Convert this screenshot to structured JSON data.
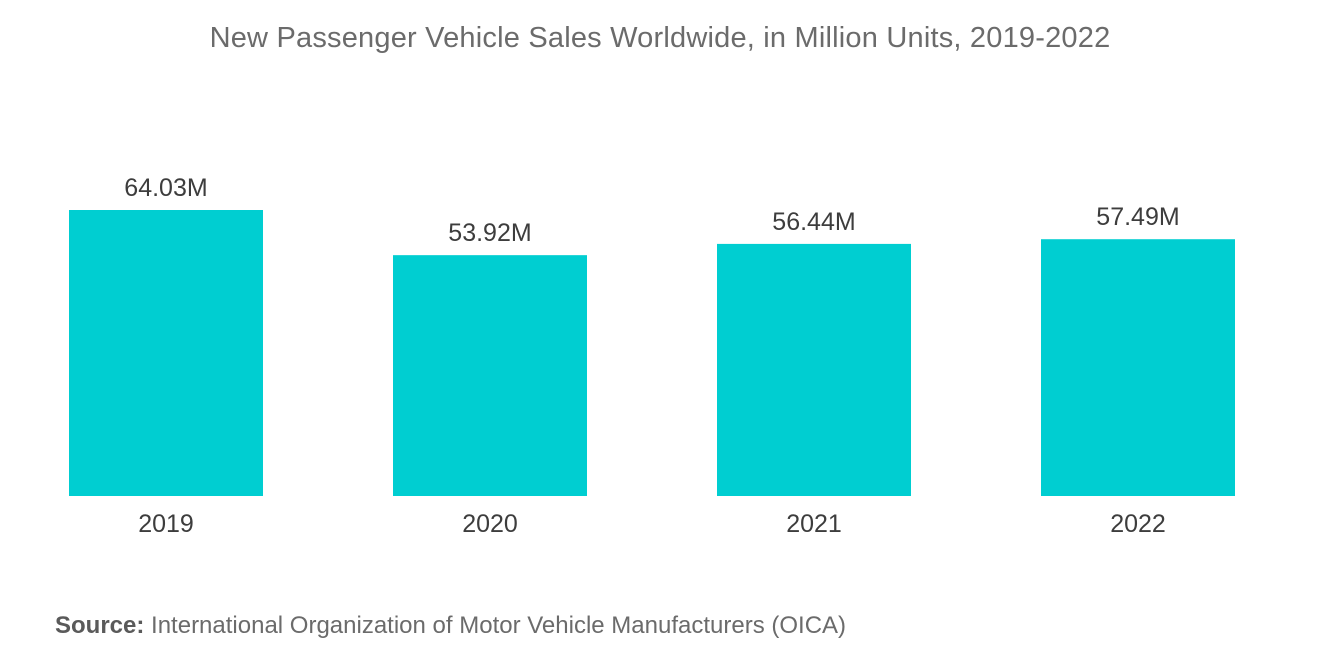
{
  "chart_data": {
    "type": "bar",
    "title": "New Passenger Vehicle Sales Worldwide, in Million Units, 2019-2022",
    "categories": [
      "2019",
      "2020",
      "2021",
      "2022"
    ],
    "values": [
      64.03,
      53.92,
      56.44,
      57.49
    ],
    "data_labels": [
      "64.03M",
      "53.92M",
      "56.44M",
      "57.49M"
    ],
    "unit": "M",
    "xlabel": "",
    "ylabel": "",
    "ylim": [
      0,
      64.03
    ],
    "grid": false,
    "legend": "none",
    "bar_color": "#00CED1"
  },
  "source": {
    "label": "Source:",
    "text": "International Organization of Motor Vehicle Manufacturers (OICA)"
  }
}
